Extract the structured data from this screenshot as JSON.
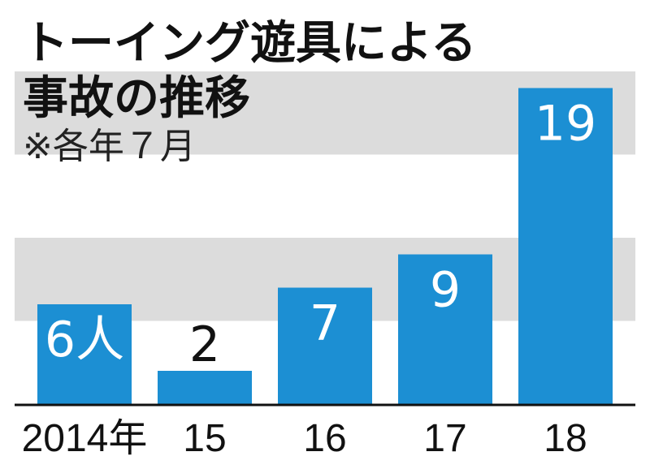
{
  "chart_data": {
    "type": "bar",
    "title": [
      "トーイング遊具による",
      "事故の推移"
    ],
    "subtitle": "※各年７月",
    "categories": [
      "2014年",
      "15",
      "16",
      "17",
      "18"
    ],
    "values": [
      6,
      2,
      7,
      9,
      19
    ],
    "value_labels": [
      "6人",
      "2",
      "7",
      "9",
      "19"
    ],
    "ylim": [
      0,
      20
    ],
    "band_step": 5,
    "xlabel": "",
    "ylabel": "",
    "colors": {
      "bar": "#1c8fd3",
      "band": "#dcdcdc",
      "axis": "#111111"
    }
  }
}
